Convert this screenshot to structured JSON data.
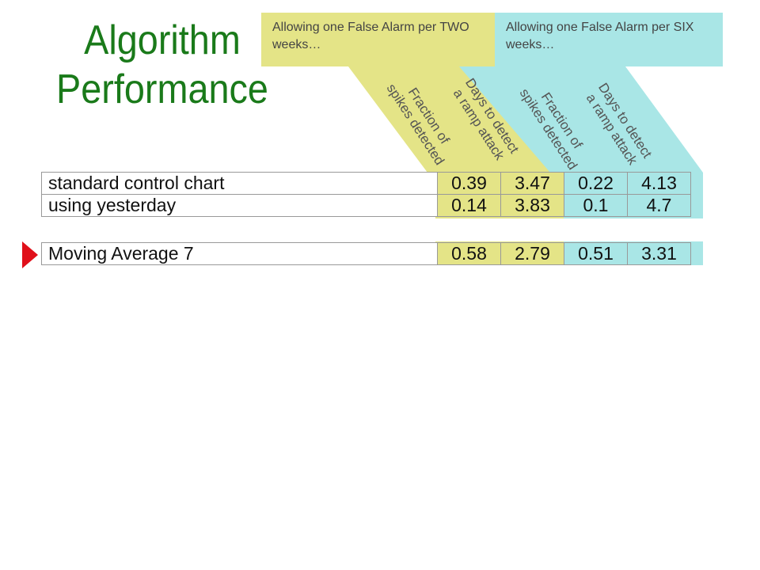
{
  "title": {
    "line1": "Algorithm",
    "line2": "Performance"
  },
  "groups": [
    {
      "label": "Allowing one False Alarm per TWO weeks…",
      "color": "#e4e487"
    },
    {
      "label": "Allowing one False Alarm per SIX weeks…",
      "color": "#a9e6e6"
    }
  ],
  "column_headers": [
    {
      "line1": "Fraction of",
      "line2": "spikes detected"
    },
    {
      "line1": "Days to detect",
      "line2": "a ramp attack"
    },
    {
      "line1": "Fraction of",
      "line2": "spikes detected"
    },
    {
      "line1": "Days to detect",
      "line2": "a ramp attack"
    }
  ],
  "rows_top": [
    {
      "name": "standard control chart",
      "values": [
        "0.39",
        "3.47",
        "0.22",
        "4.13"
      ]
    },
    {
      "name": "using yesterday",
      "values": [
        "0.14",
        "3.83",
        "0.1",
        "4.7"
      ]
    }
  ],
  "rows_bottom": [
    {
      "name": "Moving Average 7",
      "values": [
        "0.58",
        "2.79",
        "0.51",
        "3.31"
      ]
    }
  ]
}
